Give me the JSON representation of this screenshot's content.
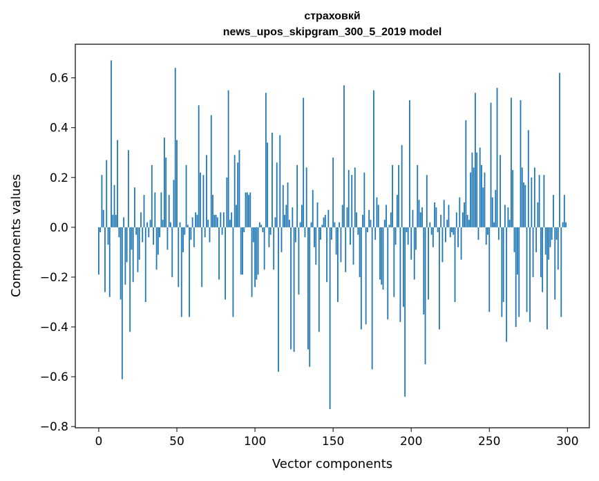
{
  "chart_data": {
    "type": "bar",
    "title": "страховкй",
    "subtitle": "news_upos_skipgram_300_5_2019 model",
    "xlabel": "Vector components",
    "ylabel": "Components values",
    "xlim": [
      -15,
      314
    ],
    "ylim": [
      -0.805,
      0.735
    ],
    "xticks": [
      0,
      50,
      100,
      150,
      200,
      250,
      300
    ],
    "yticks": [
      -0.8,
      -0.6,
      -0.4,
      -0.2,
      0.0,
      0.2,
      0.4,
      0.6
    ],
    "ytick_labels": [
      "−0.8",
      "−0.6",
      "−0.4",
      "−0.2",
      "0.0",
      "0.2",
      "0.4",
      "0.6"
    ],
    "bar_color": "#1f77b4",
    "grid": false,
    "legend": "none",
    "x": "0..299",
    "values": [
      -0.19,
      -0.02,
      0.21,
      0.07,
      -0.26,
      0.27,
      -0.07,
      -0.28,
      0.67,
      0.05,
      0.17,
      0.05,
      0.35,
      -0.04,
      -0.29,
      -0.61,
      0.04,
      -0.23,
      -0.14,
      0.31,
      -0.42,
      -0.09,
      -0.22,
      0.16,
      -0.03,
      -0.18,
      -0.13,
      0.06,
      -0.06,
      0.13,
      -0.3,
      0.02,
      -0.04,
      0.03,
      0.25,
      -0.07,
      0.14,
      -0.17,
      -0.11,
      -0.04,
      0.14,
      0.03,
      0.36,
      0.28,
      -0.09,
      0.13,
      0.02,
      -0.2,
      0.19,
      0.64,
      0.35,
      -0.24,
      0.02,
      -0.36,
      -0.1,
      -0.03,
      0.25,
      0.01,
      -0.36,
      -0.05,
      0.04,
      -0.08,
      0.06,
      0.05,
      0.49,
      0.22,
      -0.24,
      0.21,
      -0.04,
      0.29,
      0.03,
      -0.06,
      0.45,
      0.13,
      0.05,
      0.05,
      0.04,
      -0.21,
      0.06,
      -0.03,
      0.06,
      -0.29,
      0.2,
      0.55,
      0.03,
      0.06,
      -0.36,
      0.29,
      0.09,
      0.26,
      0.31,
      -0.19,
      -0.19,
      -0.02,
      0.14,
      0.14,
      0.13,
      0.14,
      -0.28,
      -0.06,
      -0.24,
      -0.21,
      -0.19,
      0.02,
      0.01,
      -0.02,
      -0.17,
      0.54,
      0.34,
      -0.08,
      -0.03,
      0.38,
      -0.17,
      0.04,
      0.26,
      -0.58,
      0.37,
      -0.1,
      0.17,
      0.05,
      0.09,
      0.18,
      0.03,
      -0.49,
      0.08,
      -0.5,
      -0.06,
      0.25,
      -0.27,
      0.02,
      0.09,
      0.52,
      -0.04,
      0.24,
      -0.49,
      -0.56,
      0.02,
      0.15,
      -0.08,
      -0.15,
      0.1,
      -0.42,
      -0.05,
      0.01,
      0.04,
      0.05,
      -0.22,
      0.07,
      -0.73,
      -0.05,
      0.28,
      0.02,
      -0.11,
      -0.3,
      0.02,
      -0.14,
      0.09,
      0.57,
      -0.18,
      0.08,
      0.23,
      -0.07,
      0.21,
      -0.15,
      0.24,
      0.06,
      -0.03,
      -0.2,
      -0.41,
      0.05,
      0.22,
      -0.39,
      -0.02,
      0.07,
      0.03,
      -0.57,
      0.55,
      -0.05,
      0.12,
      0.09,
      -0.21,
      -0.23,
      -0.25,
      0.03,
      0.09,
      -0.37,
      0.01,
      0.06,
      0.25,
      -0.28,
      -0.07,
      0.13,
      0.25,
      -0.38,
      0.33,
      -0.32,
      -0.68,
      -0.02,
      -0.07,
      0.51,
      -0.13,
      0.07,
      -0.21,
      -0.09,
      0.25,
      0.11,
      0.06,
      0.08,
      -0.35,
      -0.55,
      0.21,
      -0.29,
      0.02,
      -0.03,
      -0.08,
      0.1,
      0.08,
      -0.02,
      -0.41,
      0.05,
      -0.14,
      0.11,
      -0.06,
      0.03,
      0.09,
      -0.04,
      -0.02,
      -0.03,
      -0.3,
      0.06,
      -0.08,
      0.12,
      -0.13,
      0.06,
      0.1,
      0.43,
      0.05,
      0.03,
      0.22,
      0.3,
      0.24,
      0.54,
      0.3,
      -0.05,
      0.32,
      0.25,
      0.16,
      0.22,
      -0.07,
      -0.03,
      -0.34,
      0.5,
      0.12,
      0.02,
      0.15,
      0.56,
      -0.05,
      0.29,
      -0.36,
      -0.3,
      0.09,
      -0.46,
      0.08,
      0.03,
      0.52,
      0.23,
      -0.1,
      -0.4,
      -0.19,
      -0.36,
      0.51,
      0.24,
      0.18,
      0.17,
      -0.34,
      0.39,
      -0.38,
      0.2,
      -0.2,
      0.24,
      -0.1,
      0.1,
      0.21,
      -0.2,
      -0.26,
      0.21,
      -0.11,
      -0.41,
      -0.13,
      -0.08,
      -0.05,
      0.13,
      -0.29,
      -0.05,
      -0.17,
      0.62,
      -0.36,
      0.02,
      0.13,
      0.02
    ]
  }
}
